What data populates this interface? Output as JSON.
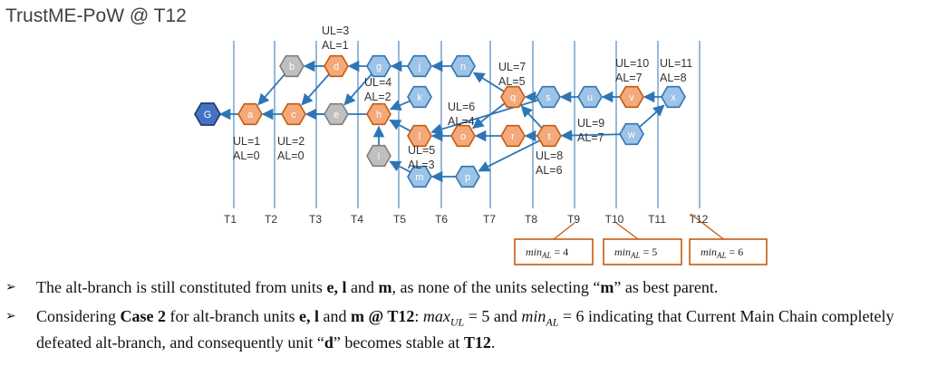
{
  "title": "TrustME-PoW @ T12",
  "colors": {
    "orange": "#F4A97A",
    "orange_stroke": "#C55A11",
    "blue": "#9DC3E6",
    "blue_stroke": "#2E75B6",
    "grey": "#BFBFBF",
    "grey_stroke": "#7F7F7F",
    "genesis": "#4472C4",
    "arrow": "#2E75B6",
    "line": "#2E75B6",
    "min_box": "#C55A11"
  },
  "time_ticks": [
    "T1",
    "T2",
    "T3",
    "T4",
    "T5",
    "T6",
    "T7",
    "T8",
    "T9",
    "T10",
    "T11",
    "T12"
  ],
  "units": [
    {
      "id": "G",
      "kind": "genesis"
    },
    {
      "id": "a",
      "kind": "orange"
    },
    {
      "id": "b",
      "kind": "grey"
    },
    {
      "id": "c",
      "kind": "orange"
    },
    {
      "id": "d",
      "kind": "orange"
    },
    {
      "id": "e",
      "kind": "grey"
    },
    {
      "id": "g",
      "kind": "blue"
    },
    {
      "id": "h",
      "kind": "orange"
    },
    {
      "id": "i",
      "kind": "grey"
    },
    {
      "id": "j",
      "kind": "blue"
    },
    {
      "id": "k",
      "kind": "blue"
    },
    {
      "id": "l",
      "kind": "orange"
    },
    {
      "id": "m",
      "kind": "blue"
    },
    {
      "id": "n",
      "kind": "blue"
    },
    {
      "id": "o",
      "kind": "orange"
    },
    {
      "id": "p",
      "kind": "blue"
    },
    {
      "id": "q",
      "kind": "orange"
    },
    {
      "id": "r",
      "kind": "orange"
    },
    {
      "id": "s",
      "kind": "blue"
    },
    {
      "id": "t",
      "kind": "orange"
    },
    {
      "id": "u",
      "kind": "blue"
    },
    {
      "id": "v",
      "kind": "orange"
    },
    {
      "id": "w",
      "kind": "blue"
    },
    {
      "id": "x",
      "kind": "blue"
    }
  ],
  "edges": [
    [
      "a",
      "G"
    ],
    [
      "c",
      "a"
    ],
    [
      "b",
      "a"
    ],
    [
      "d",
      "b"
    ],
    [
      "d",
      "c"
    ],
    [
      "e",
      "c"
    ],
    [
      "g",
      "d"
    ],
    [
      "h",
      "c"
    ],
    [
      "g",
      "e"
    ],
    [
      "i",
      "h"
    ],
    [
      "j",
      "g"
    ],
    [
      "k",
      "h"
    ],
    [
      "l",
      "h"
    ],
    [
      "m",
      "i"
    ],
    [
      "n",
      "j"
    ],
    [
      "o",
      "l"
    ],
    [
      "p",
      "m"
    ],
    [
      "q",
      "n"
    ],
    [
      "q",
      "o"
    ],
    [
      "r",
      "o"
    ],
    [
      "s",
      "q"
    ],
    [
      "t",
      "r"
    ],
    [
      "t",
      "q"
    ],
    [
      "u",
      "s"
    ],
    [
      "v",
      "u"
    ],
    [
      "w",
      "x"
    ],
    [
      "x",
      "v"
    ],
    [
      "s",
      "l"
    ],
    [
      "t",
      "p"
    ],
    [
      "w",
      "t"
    ]
  ],
  "annotations": [
    {
      "lines": [
        "UL=3",
        "AL=1"
      ]
    },
    {
      "lines": [
        "UL=4",
        "AL=2"
      ]
    },
    {
      "lines": [
        "UL=1",
        "AL=0"
      ]
    },
    {
      "lines": [
        "UL=2",
        "AL=0"
      ]
    },
    {
      "lines": [
        "UL=6",
        "AL=4"
      ]
    },
    {
      "lines": [
        "UL=5",
        "AL=3"
      ]
    },
    {
      "lines": [
        "UL=7",
        "AL=5"
      ]
    },
    {
      "lines": [
        "UL=8",
        "AL=6"
      ]
    },
    {
      "lines": [
        "UL=9",
        "AL=7"
      ]
    },
    {
      "lines": [
        "UL=10",
        "AL=7"
      ]
    },
    {
      "lines": [
        "UL=11",
        "AL=8"
      ]
    }
  ],
  "min_boxes": [
    {
      "text": "min",
      "sub": "AL",
      "value": " = 4"
    },
    {
      "text": "min",
      "sub": "AL",
      "value": " = 5"
    },
    {
      "text": "min",
      "sub": "AL",
      "value": " = 6"
    }
  ],
  "bullets": [
    {
      "parts": [
        {
          "t": "The alt-branch is still constituted from units "
        },
        {
          "t": "e, l",
          "b": true
        },
        {
          "t": " and "
        },
        {
          "t": "m",
          "b": true
        },
        {
          "t": ", as none of the units selecting “"
        },
        {
          "t": "m",
          "b": true
        },
        {
          "t": "” as best parent."
        }
      ]
    },
    {
      "parts": [
        {
          "t": "Considering "
        },
        {
          "t": "Case 2",
          "b": true
        },
        {
          "t": " for alt-branch units "
        },
        {
          "t": "e, l",
          "b": true
        },
        {
          "t": " and "
        },
        {
          "t": "m @ T12",
          "b": true
        },
        {
          "t": ": "
        },
        {
          "t": "max",
          "i": true
        },
        {
          "t": "UL",
          "i": true,
          "sub": true
        },
        {
          "t": " = 5 and "
        },
        {
          "t": "min",
          "i": true
        },
        {
          "t": "AL",
          "i": true,
          "sub": true
        },
        {
          "t": " = 6 indicating that Current Main Chain completely defeated alt-branch, and consequently unit “"
        },
        {
          "t": "d",
          "b": true
        },
        {
          "t": "” becomes stable at "
        },
        {
          "t": "T12",
          "b": true
        },
        {
          "t": "."
        }
      ]
    }
  ]
}
